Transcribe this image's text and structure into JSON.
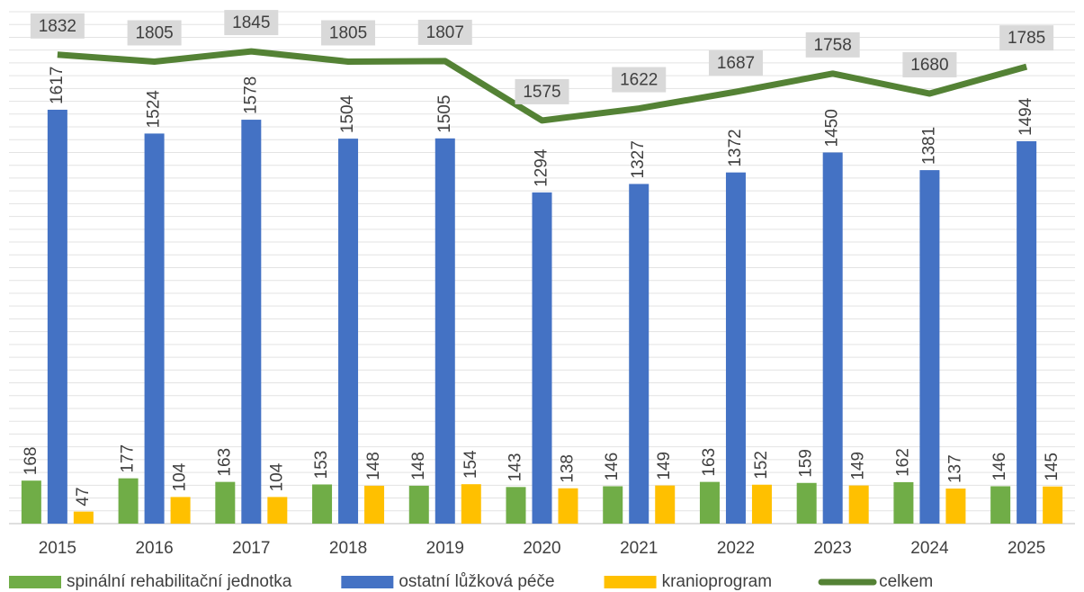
{
  "chart_data": {
    "type": "bar",
    "categories": [
      "2015",
      "2016",
      "2017",
      "2018",
      "2019",
      "2020",
      "2021",
      "2022",
      "2023",
      "2024",
      "2025"
    ],
    "series": [
      {
        "name": "spinální rehabilitační jednotka",
        "color": "#70ad47",
        "values": [
          168,
          177,
          163,
          153,
          148,
          143,
          146,
          163,
          159,
          162,
          146
        ]
      },
      {
        "name": "ostatní lůžková péče",
        "color": "#4472c4",
        "values": [
          1617,
          1524,
          1578,
          1504,
          1505,
          1294,
          1327,
          1372,
          1450,
          1381,
          1494
        ]
      },
      {
        "name": "kranioprogram",
        "color": "#ffc000",
        "values": [
          47,
          104,
          104,
          148,
          154,
          138,
          149,
          152,
          149,
          137,
          145
        ]
      },
      {
        "name": "celkem",
        "color": "#548235",
        "type": "line",
        "values": [
          1832,
          1805,
          1845,
          1805,
          1807,
          1575,
          1622,
          1687,
          1758,
          1680,
          1785
        ]
      }
    ],
    "ylim": [
      0,
      2000
    ],
    "yticks": [
      0,
      50,
      100,
      150,
      200,
      250,
      300,
      350,
      400,
      450,
      500,
      550,
      600,
      650,
      700,
      750,
      800,
      850,
      900,
      950,
      1000,
      1050,
      1100,
      1150,
      1200,
      1250,
      1300,
      1350,
      1400,
      1450,
      1500,
      1550,
      1600,
      1650,
      1700,
      1750,
      1800,
      1850,
      1900,
      1950,
      2000
    ],
    "grid": true,
    "legend": "bottom"
  }
}
